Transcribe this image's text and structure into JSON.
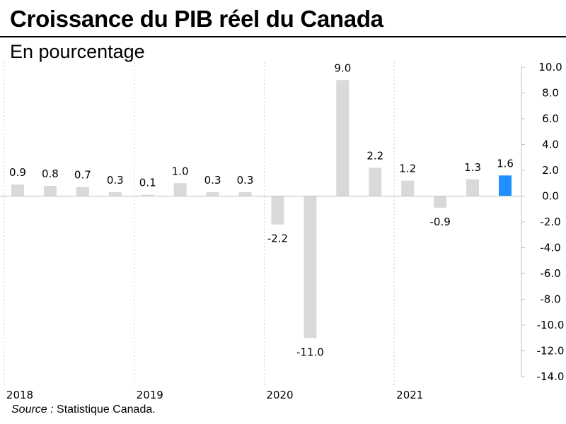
{
  "title": "Croissance du PIB réel du Canada",
  "subtitle": "En pourcentage",
  "source": {
    "label": "Source :",
    "text": " Statistique Canada."
  },
  "colors": {
    "bar": "#d9d9d9",
    "highlight": "#1e90ff",
    "axis": "#bfbfbf",
    "divider": "#d0d0d0"
  },
  "chart_data": {
    "type": "bar",
    "title": "Croissance du PIB réel du Canada",
    "subtitle": "En pourcentage",
    "xlabel": "",
    "ylabel": "",
    "ylim": [
      -14,
      10
    ],
    "y_ticks": [
      "10.0",
      "8.0",
      "6.0",
      "4.0",
      "2.0",
      "0.0",
      "-2.0",
      "-4.0",
      "-6.0",
      "-8.0",
      "-10.0",
      "-12.0",
      "-14.0"
    ],
    "y_axis_position": "right",
    "year_labels": [
      "2018",
      "2019",
      "2020",
      "2021"
    ],
    "quarters_per_year": 4,
    "values": [
      0.9,
      0.8,
      0.7,
      0.3,
      0.1,
      1.0,
      0.3,
      0.3,
      -2.2,
      -11.0,
      9.0,
      2.2,
      1.2,
      -0.9,
      1.3,
      1.6
    ],
    "value_labels": [
      "0.9",
      "0.8",
      "0.7",
      "0.3",
      "0.1",
      "1.0",
      "0.3",
      "0.3",
      "-2.2",
      "-11.0",
      "9.0",
      "2.2",
      "1.2",
      "-0.9",
      "1.3",
      "1.6"
    ],
    "highlight_index": 15,
    "grid": false,
    "legend": "none"
  }
}
